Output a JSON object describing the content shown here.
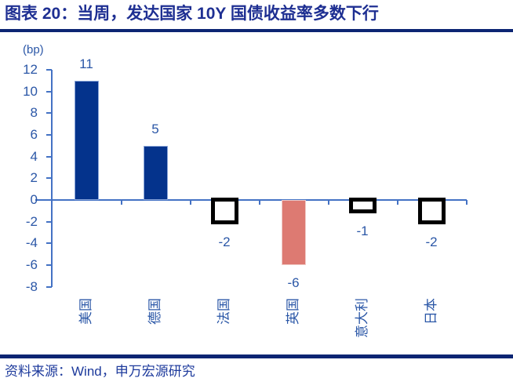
{
  "title": "图表 20：当周，发达国家 10Y 国债收益率多数下行",
  "source": "资料来源：Wind，申万宏源研究",
  "chart_data": {
    "type": "bar",
    "unit_label": "(bp)",
    "categories": [
      "美国",
      "德国",
      "法国",
      "英国",
      "意大利",
      "日本"
    ],
    "values": [
      11,
      5,
      -2,
      -6,
      -1,
      -2
    ],
    "value_labels": [
      "11",
      "5",
      "-2",
      "-6",
      "-1",
      "-2"
    ],
    "bar_styles": [
      "solid-navy",
      "solid-navy",
      "hollow-black",
      "solid-salmon",
      "hollow-black",
      "hollow-black"
    ],
    "ylim": [
      -8,
      12
    ],
    "yticks": [
      12,
      10,
      8,
      6,
      4,
      2,
      0,
      -2,
      -4,
      -6,
      -8
    ],
    "grid": "off",
    "legend": "none",
    "colors": {
      "bar_navy": "#04338c",
      "bar_navy_edge": "#8aa5d8",
      "bar_salmon": "#dd7a72",
      "bar_salmon_edge": "#f0cbc7",
      "hollow_border": "#000000",
      "axis_line": "#4472c4",
      "tick_label": "#2b57a7",
      "title_text": "#1e2f92",
      "source_text": "#1d3a9c",
      "rule": "#0c2573"
    }
  }
}
